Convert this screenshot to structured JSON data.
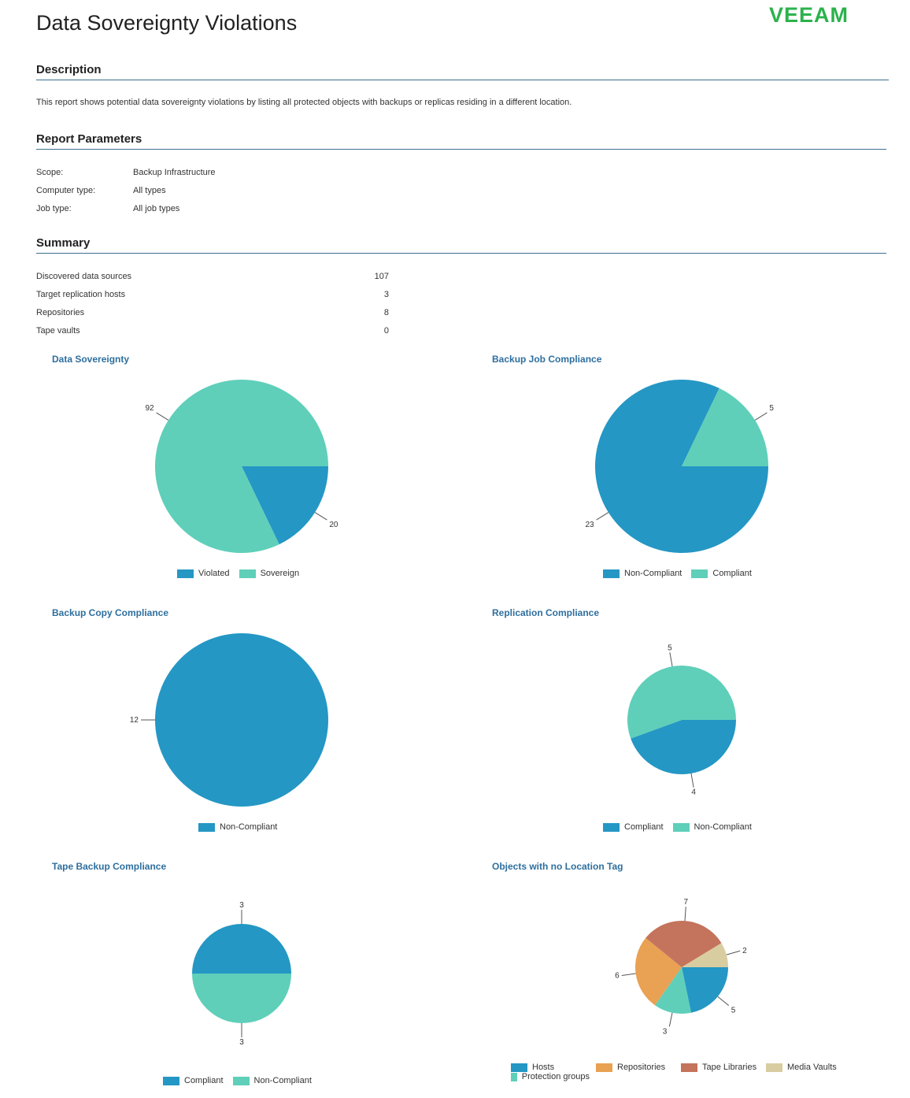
{
  "report": {
    "title": "Data Sovereignty Violations",
    "logo_text": "VEEAM"
  },
  "description": {
    "heading": "Description",
    "text": "This report shows potential data sovereignty violations by listing all protected objects with backups or replicas residing in a different location."
  },
  "parameters": {
    "heading": "Report Parameters",
    "items": [
      {
        "label": "Scope:",
        "value": "Backup Infrastructure"
      },
      {
        "label": "Computer type:",
        "value": "All types"
      },
      {
        "label": "Job type:",
        "value": "All job types"
      }
    ]
  },
  "summary": {
    "heading": "Summary",
    "items": [
      {
        "label": "Discovered data sources",
        "value": "107"
      },
      {
        "label": "Target replication hosts",
        "value": "3"
      },
      {
        "label": "Repositories",
        "value": "8"
      },
      {
        "label": "Tape vaults",
        "value": "0"
      }
    ]
  },
  "colors": {
    "blue": "#2497c4",
    "teal": "#5fcfb9",
    "orange": "#e9a153",
    "brown": "#c4735c",
    "tan": "#d8cda0",
    "heading_rule": "#3b6f8e",
    "chart_title": "#2e6f9e",
    "logo": "#2bb24c"
  },
  "chart_data": [
    {
      "type": "pie",
      "title": "Data Sovereignty",
      "series": [
        {
          "values": [
            20,
            92
          ]
        }
      ],
      "categories": [
        "Violated",
        "Sovereign"
      ],
      "colors": [
        "#2497c4",
        "#5fcfb9"
      ],
      "labels": [
        "20",
        "92"
      ]
    },
    {
      "type": "pie",
      "title": "Backup Job Compliance",
      "series": [
        {
          "values": [
            23,
            5
          ]
        }
      ],
      "categories": [
        "Non-Compliant",
        "Compliant"
      ],
      "colors": [
        "#2497c4",
        "#5fcfb9"
      ],
      "labels": [
        "23",
        "5"
      ]
    },
    {
      "type": "pie",
      "title": "Backup Copy Compliance",
      "series": [
        {
          "values": [
            12
          ]
        }
      ],
      "categories": [
        "Non-Compliant"
      ],
      "colors": [
        "#2497c4"
      ],
      "labels": [
        "12"
      ]
    },
    {
      "type": "pie",
      "title": "Replication Compliance",
      "series": [
        {
          "values": [
            4,
            5
          ]
        }
      ],
      "categories": [
        "Compliant",
        "Non-Compliant"
      ],
      "colors": [
        "#2497c4",
        "#5fcfb9"
      ],
      "labels": [
        "4",
        "5"
      ]
    },
    {
      "type": "pie",
      "title": "Tape Backup Compliance",
      "series": [
        {
          "values": [
            3,
            3
          ]
        }
      ],
      "categories": [
        "Compliant",
        "Non-Compliant"
      ],
      "colors": [
        "#2497c4",
        "#5fcfb9"
      ],
      "labels": [
        "3",
        "3"
      ]
    },
    {
      "type": "pie",
      "title": "Objects with no Location Tag",
      "series": [
        {
          "values": [
            5,
            3,
            6,
            7,
            2
          ]
        }
      ],
      "categories": [
        "Hosts",
        "Protection groups",
        "Repositories",
        "Tape Libraries",
        "Media Vaults"
      ],
      "legend_order": [
        "Hosts",
        "Repositories",
        "Tape Libraries",
        "Media Vaults",
        "Protection groups"
      ],
      "colors": [
        "#2497c4",
        "#5fcfb9",
        "#e9a153",
        "#c4735c",
        "#d8cda0"
      ],
      "labels": [
        "5",
        "3",
        "6",
        "7",
        "2"
      ]
    }
  ]
}
